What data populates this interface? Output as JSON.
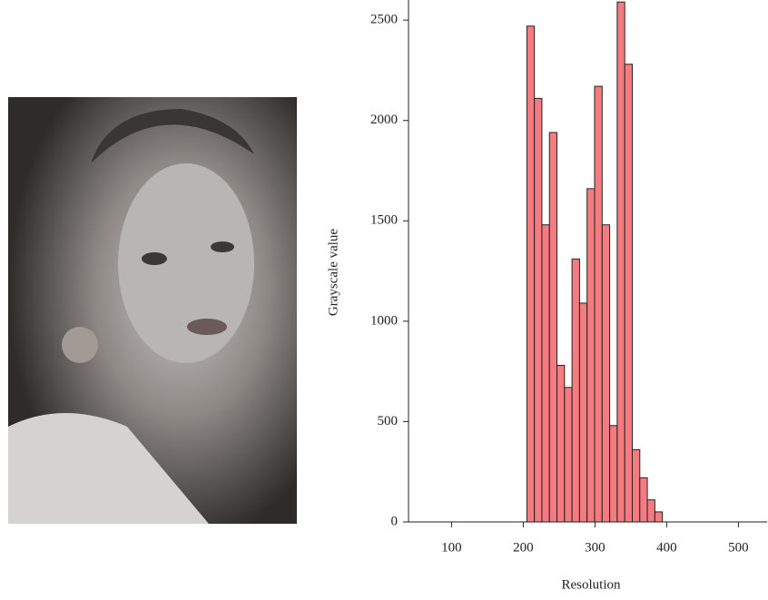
{
  "chart_data": {
    "type": "histogram",
    "xlabel": "Resolution",
    "ylabel": "Grayscale value",
    "bins": [
      205,
      215.5,
      226,
      236.5,
      247,
      257.5,
      268,
      278.5,
      289,
      299.5,
      310,
      320.5,
      331,
      341.5,
      352,
      362.5,
      373,
      383.5,
      394
    ],
    "values": [
      2470,
      2110,
      1480,
      1940,
      780,
      670,
      1310,
      1090,
      1660,
      2170,
      1480,
      480,
      2590,
      2280,
      360,
      220,
      110,
      50
    ],
    "color": "#f47c80",
    "xlim": [
      40,
      540
    ],
    "xticks": [
      100,
      200,
      300,
      400,
      500
    ],
    "ylim": [
      0,
      2600
    ],
    "yticks": [
      0,
      500,
      1000,
      1500,
      2000,
      2500
    ]
  }
}
